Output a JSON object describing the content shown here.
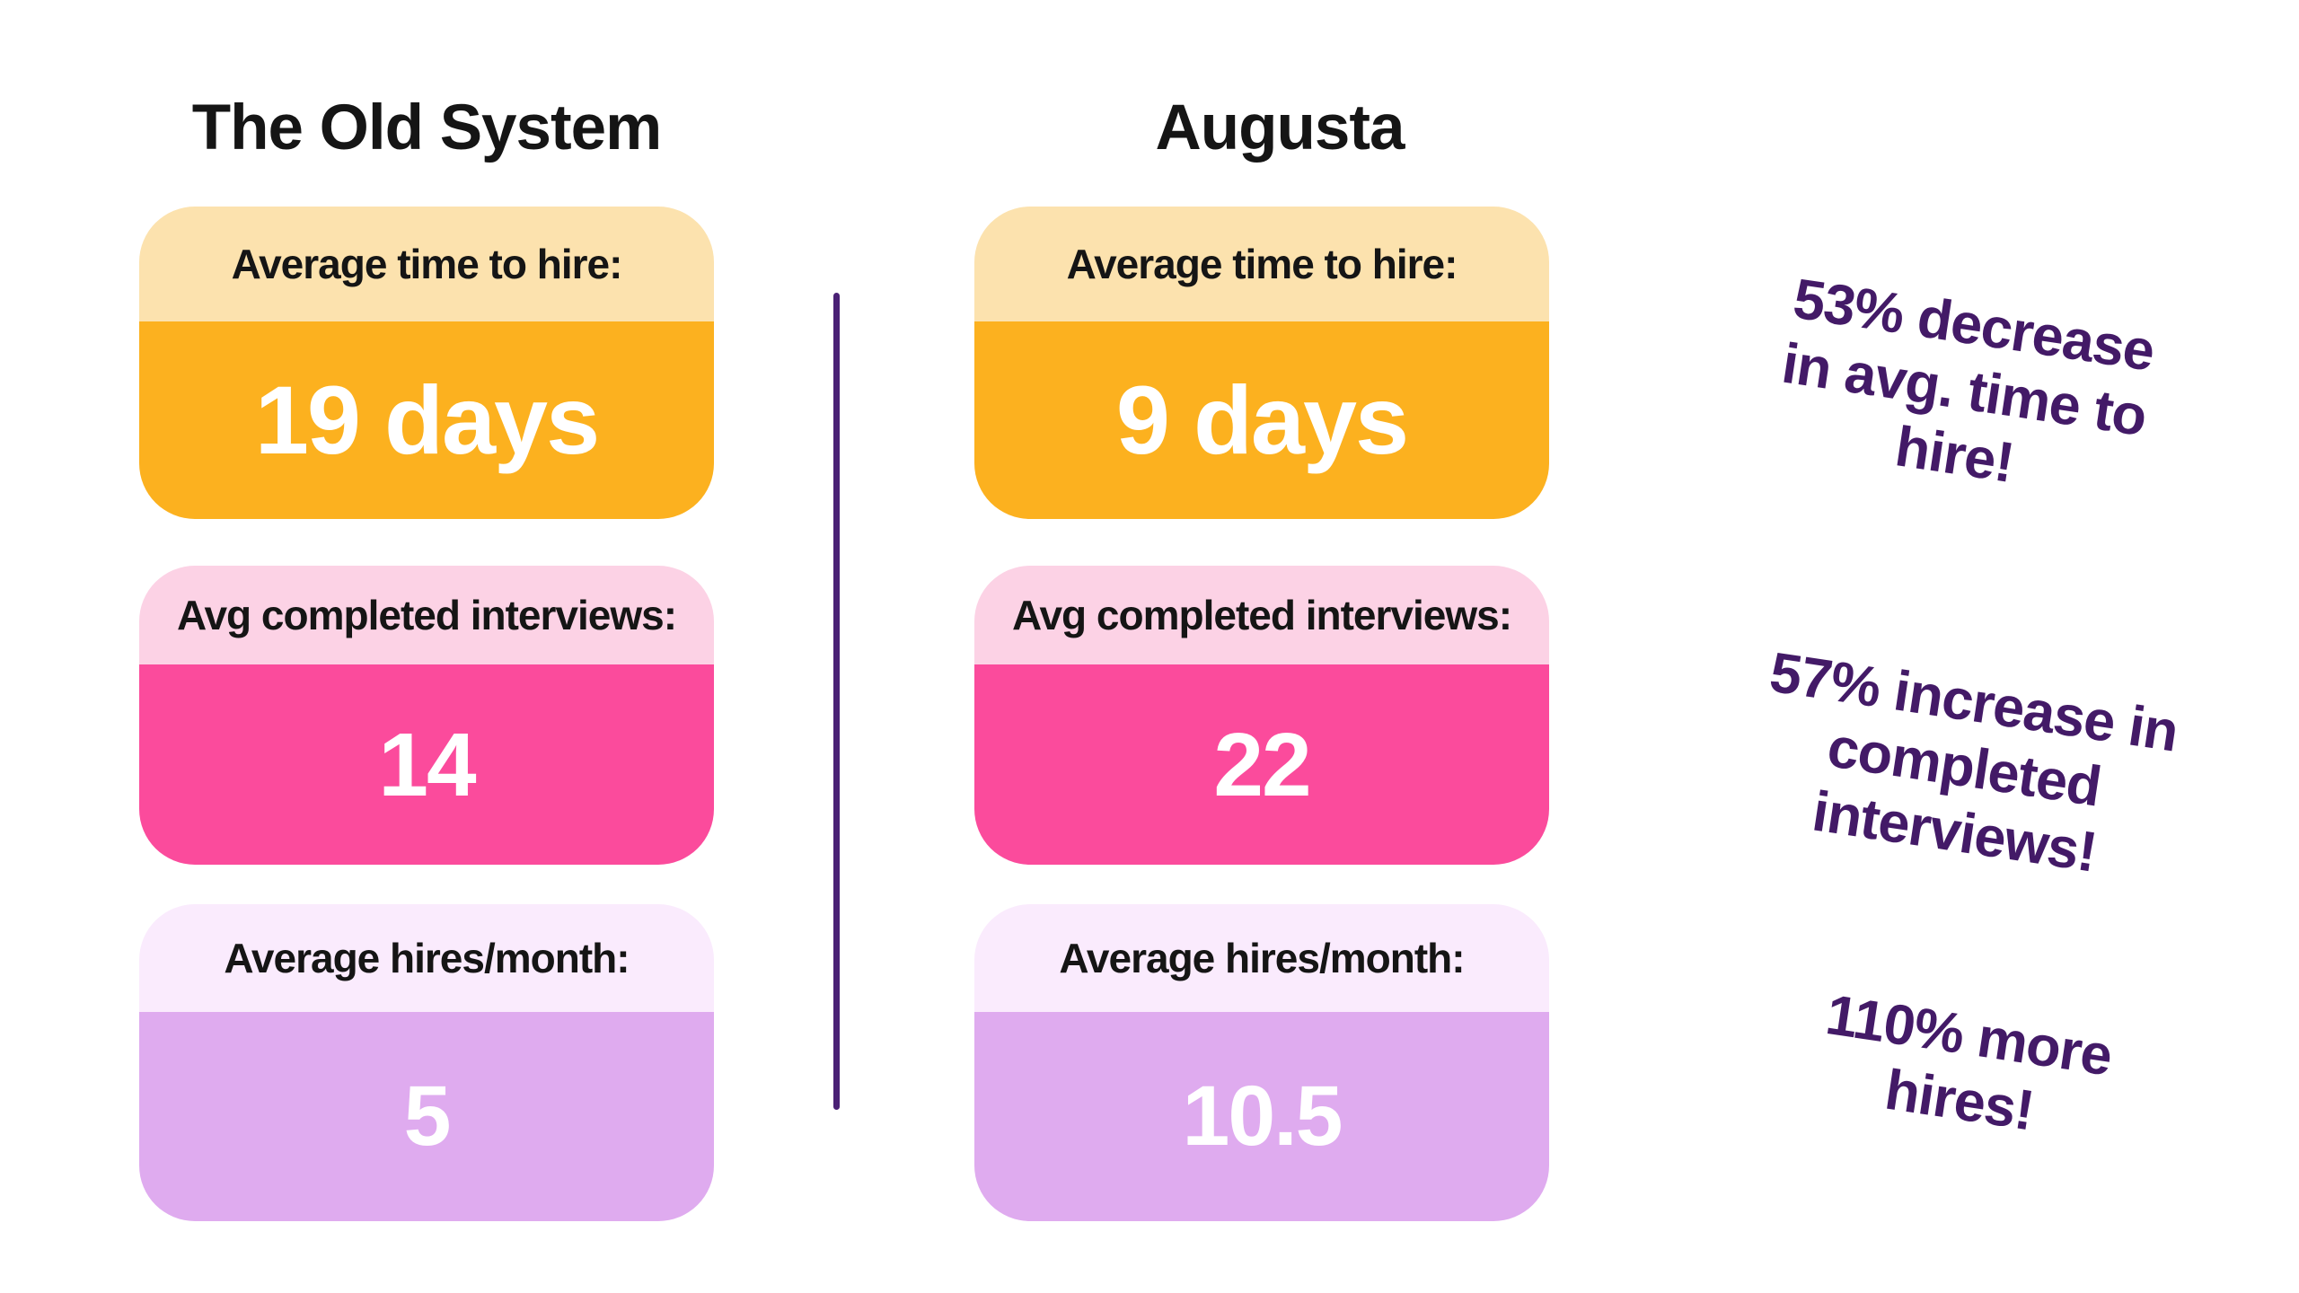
{
  "chart_data": {
    "type": "table",
    "title": "The Old System vs Augusta",
    "categories": [
      "Average time to hire",
      "Avg completed interviews",
      "Average hires/month"
    ],
    "series": [
      {
        "name": "The Old System",
        "values": [
          "19 days",
          14,
          5
        ]
      },
      {
        "name": "Augusta",
        "values": [
          "9 days",
          22,
          10.5
        ]
      }
    ],
    "annotations": [
      "53% decrease in avg. time to hire!",
      "57% increase in completed interviews!",
      "110% more hires!"
    ],
    "legend_position": "none",
    "grid": false
  },
  "columns": [
    {
      "title": "The Old System",
      "cards": [
        {
          "label": "Average time to hire:",
          "value": "19 days",
          "theme": "orange"
        },
        {
          "label": "Avg completed interviews:",
          "value": "14",
          "theme": "pink"
        },
        {
          "label": "Average hires/month:",
          "value": "5",
          "theme": "purple"
        }
      ]
    },
    {
      "title": "Augusta",
      "cards": [
        {
          "label": "Average time to hire:",
          "value": "9 days",
          "theme": "orange"
        },
        {
          "label": "Avg completed interviews:",
          "value": "22",
          "theme": "pink"
        },
        {
          "label": "Average hires/month:",
          "value": "10.5",
          "theme": "purple"
        }
      ]
    }
  ],
  "annotations": [
    {
      "lines": [
        "53% decrease",
        "in avg. time to",
        "hire!"
      ]
    },
    {
      "lines": [
        "57% increase in",
        "completed",
        "interviews!"
      ]
    },
    {
      "lines": [
        "110% more",
        "hires!"
      ]
    }
  ],
  "colors": {
    "background": "#FFFFFF",
    "heading_text": "#151515",
    "value_text": "#FFFFFF",
    "orange_header": "#FCE2AE",
    "orange_body": "#FCB11F",
    "pink_header": "#FCD2E5",
    "pink_body": "#FB4B9C",
    "purple_header": "#FAEBFD",
    "purple_body": "#DFABEF",
    "divider": "#4A2175",
    "annotation_text": "#431A67"
  }
}
